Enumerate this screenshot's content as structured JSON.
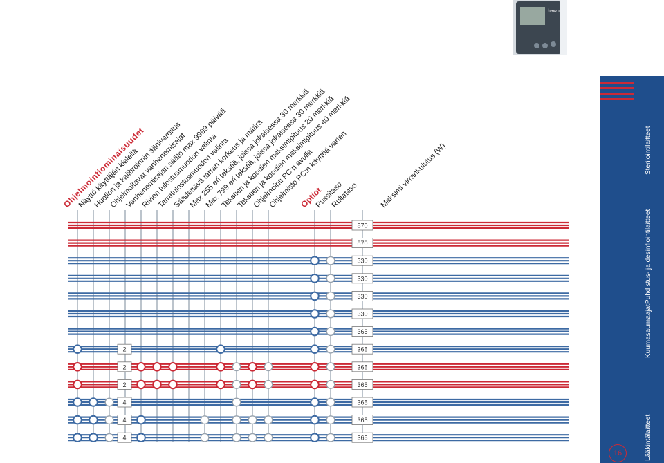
{
  "colors": {
    "red": "#cc2a36",
    "blue": "#3d6aa3",
    "grid_line": "#7a8899",
    "band": "#1f4e8c",
    "text": "#222222"
  },
  "features": {
    "header": "Ohjelmointiominaisuudet",
    "items": [
      "Näyttö käyttäjän kielellä",
      "Huollon ja kalibroinnin äänivaroitus",
      "Ohjelmoitavat vanhenemisajat",
      "Vanhenemisajan säätö max 9999 päivää",
      "Rivien tulostusmuodon valinta",
      "Tarratulostusmuodon valinta",
      "Säädettävä tarran korkeus ja määrä",
      "Max 255 eri tekstiä, joissa jokaisessa 30 merkkiä",
      "Max 799 eri tekstiä, joissa jokaisessa 30 merkkiä",
      "Tekstien ja koodien maksimipituus 20 merkkiä",
      "Tekstien ja koodien maksimipituus 40 merkkiä",
      "Ohjelmointi PC:n avulla",
      "Ohjelmisto PC:n käyttöä varten"
    ]
  },
  "options": {
    "header": "Optiot",
    "items": [
      "Pussitaso",
      "Rullataso"
    ]
  },
  "power_label": "Maksimi virrankulutus (W)",
  "rows": [
    {
      "color": "red",
      "power": "870",
      "count": "",
      "filled": [],
      "open": []
    },
    {
      "color": "red",
      "power": "870",
      "count": "",
      "filled": [],
      "open": []
    },
    {
      "color": "blue",
      "power": "330",
      "count": "",
      "filled": [
        13
      ],
      "open": [
        14
      ]
    },
    {
      "color": "blue",
      "power": "330",
      "count": "",
      "filled": [
        13
      ],
      "open": [
        14
      ]
    },
    {
      "color": "blue",
      "power": "330",
      "count": "",
      "filled": [
        13
      ],
      "open": [
        14
      ]
    },
    {
      "color": "blue",
      "power": "330",
      "count": "",
      "filled": [
        13
      ],
      "open": [
        14
      ]
    },
    {
      "color": "blue",
      "power": "365",
      "count": "",
      "filled": [
        13
      ],
      "open": [
        14
      ]
    },
    {
      "color": "blue",
      "power": "365",
      "count": "2",
      "filled": [
        0,
        9,
        13
      ],
      "open": [
        14
      ]
    },
    {
      "color": "red",
      "power": "365",
      "count": "2",
      "filled": [
        0,
        4,
        5,
        6,
        9,
        11,
        13
      ],
      "open": [
        10,
        12,
        14
      ]
    },
    {
      "color": "red",
      "power": "365",
      "count": "2",
      "filled": [
        0,
        4,
        5,
        6,
        9,
        11,
        13
      ],
      "open": [
        10,
        12,
        14
      ]
    },
    {
      "color": "blue",
      "power": "365",
      "count": "4",
      "filled": [
        0,
        1,
        13
      ],
      "open": [
        2,
        10,
        14
      ]
    },
    {
      "color": "blue",
      "power": "365",
      "count": "4",
      "filled": [
        0,
        1,
        4,
        13
      ],
      "open": [
        2,
        8,
        10,
        11,
        12,
        14
      ]
    },
    {
      "color": "blue",
      "power": "365",
      "count": "4",
      "filled": [
        0,
        1,
        4,
        13
      ],
      "open": [
        2,
        8,
        10,
        11,
        12,
        14
      ]
    }
  ],
  "side_labels": [
    "Lääkintälaitteet",
    "Kuumasaumaajat",
    "Puhdistus- ja desinfiointilaitteet",
    "Sterilointilaitteet"
  ],
  "page_number": "16",
  "device_brand": "hawo"
}
